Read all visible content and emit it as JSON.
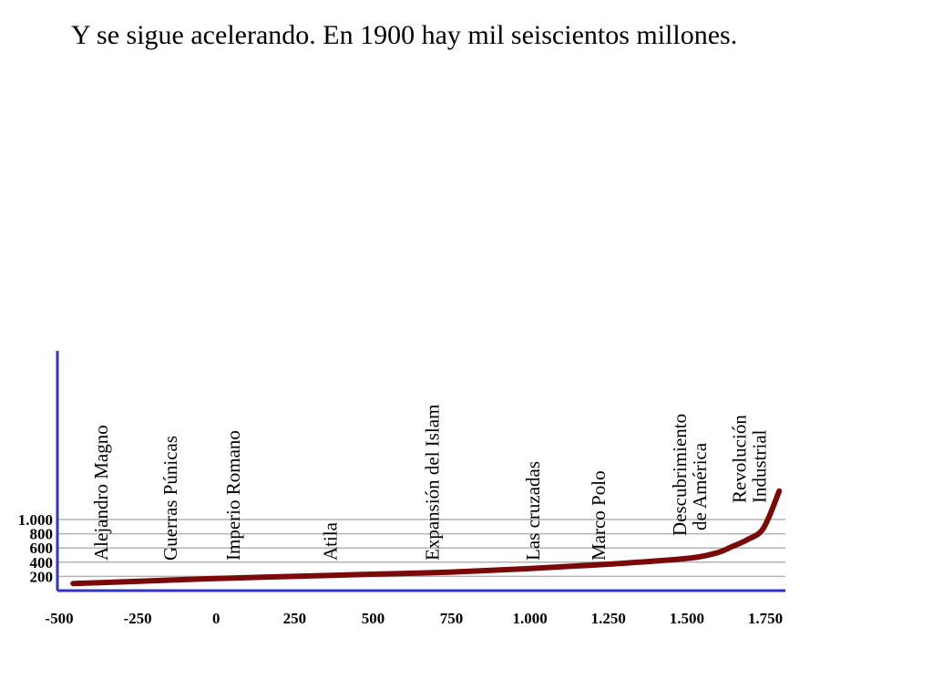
{
  "title": "Y se sigue acelerando. En 1900 hay mil seiscientos millones.",
  "chart_data": {
    "type": "line",
    "title": "Y se sigue acelerando. En 1900 hay mil seiscientos millones.",
    "xlabel": "",
    "ylabel": "",
    "xlim": [
      -500,
      1800
    ],
    "ylim": [
      0,
      1000
    ],
    "x_ticks": [
      -500,
      -250,
      0,
      250,
      500,
      750,
      1000,
      1250,
      1500,
      1750
    ],
    "x_tick_labels": [
      "-500",
      "-250",
      "0",
      "250",
      "500",
      "750",
      "1.000",
      "1.250",
      "1.500",
      "1.750"
    ],
    "y_ticks": [
      200,
      400,
      600,
      800,
      1000
    ],
    "y_tick_labels": [
      "200",
      "400",
      "600",
      "800",
      "1.000"
    ],
    "grid": "horizontal",
    "series": [
      {
        "color": "#7a0a0a",
        "x": [
          -450,
          -250,
          0,
          250,
          500,
          750,
          1000,
          1250,
          1500,
          1600,
          1650,
          1700,
          1750,
          1800
        ],
        "y": [
          100,
          130,
          170,
          200,
          230,
          260,
          310,
          370,
          450,
          530,
          620,
          720,
          880,
          1400
        ]
      }
    ],
    "annotations": [
      {
        "x": -360,
        "lines": [
          "Alejandro Magno"
        ]
      },
      {
        "x": -140,
        "lines": [
          "Guerras Púnicas"
        ]
      },
      {
        "x": 60,
        "lines": [
          "Imperio Romano"
        ]
      },
      {
        "x": 370,
        "lines": [
          "Atila"
        ]
      },
      {
        "x": 695,
        "lines": [
          "Expansión del Islam"
        ]
      },
      {
        "x": 1015,
        "lines": [
          "Las cruzadas"
        ]
      },
      {
        "x": 1225,
        "lines": [
          "Marco Polo"
        ]
      },
      {
        "x": 1515,
        "lines": [
          "Descubrimiento",
          "de América"
        ]
      },
      {
        "x": 1705,
        "lines": [
          "Revolución",
          "Industrial"
        ]
      }
    ],
    "colors": {
      "axis": "#3333cc",
      "grid": "#b3b3b3",
      "line": "#7a0a0a"
    }
  }
}
